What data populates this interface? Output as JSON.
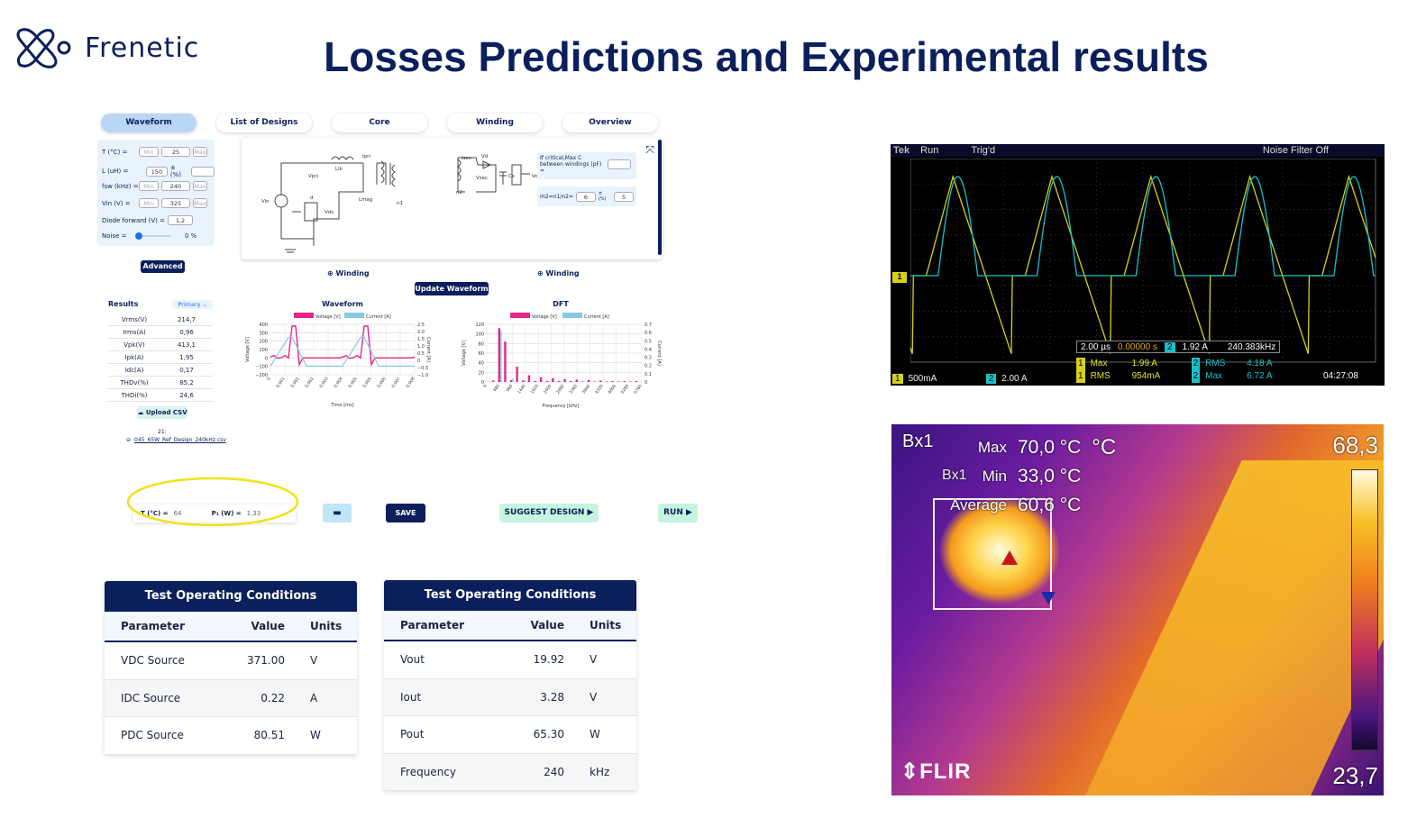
{
  "header": {
    "brand": "Frenetic",
    "title": "Losses Predictions and Experimental results"
  },
  "tabs": [
    "Waveform",
    "List of Designs",
    "Core",
    "Winding",
    "Overview"
  ],
  "inputs": {
    "rows": [
      {
        "label": "T (°C) =",
        "min": "Min",
        "value": "25",
        "max": "Max"
      },
      {
        "label": "L (uH) =",
        "value": "150",
        "unit": "± (%)"
      },
      {
        "label": "fsw (kHz) =",
        "min": "Min",
        "value": "240",
        "max": "Max"
      },
      {
        "label": "Vin (V) =",
        "min": "Min",
        "value": "325",
        "max": "Max"
      },
      {
        "label": "Diode forward (V) =",
        "value": "1,2"
      },
      {
        "label": "Noise =",
        "value": "0 %"
      }
    ],
    "advanced": "Advanced"
  },
  "schematic": {
    "critical_label": "If critical,Max C between windings (pF) =",
    "ratio_label": "m2=n1/n2=",
    "ratio_value": "6",
    "ratio_pm": "± (%)",
    "ratio_tol": "5",
    "labels": [
      "Ipri",
      "Llk",
      "Lmag",
      "Vpri",
      "Vin",
      "Vds",
      "d",
      "n1",
      "Isec",
      "Vd",
      "Vsec",
      "Cs",
      "n2",
      "Vo"
    ]
  },
  "winding_buttons": [
    "Winding",
    "Winding"
  ],
  "update_waveform": "Update Waveform",
  "results": {
    "title": "Results",
    "selector": "Primary",
    "rows": [
      {
        "name": "Vrms(V)",
        "value": "214,7"
      },
      {
        "name": "Irms(A)",
        "value": "0,96"
      },
      {
        "name": "Vpk(V)",
        "value": "413,1"
      },
      {
        "name": "Ipk(A)",
        "value": "1,95"
      },
      {
        "name": "Idc(A)",
        "value": "0,17"
      },
      {
        "name": "THDv(%)",
        "value": "85,2"
      },
      {
        "name": "THDi(%)",
        "value": "24,6"
      }
    ]
  },
  "upload": {
    "label": "Upload CSV",
    "count": "21:",
    "file": "045_65W_Ref_Design_240kHz.csv"
  },
  "chart_data": [
    {
      "type": "line",
      "title": "Waveform",
      "xlabel": "Time [ms]",
      "ylabel": "Voltage [V]",
      "y2label": "Current [A]",
      "legend": [
        "Voltage [V]",
        "Current [A]"
      ],
      "ylim": [
        -200,
        400
      ],
      "y2lim": [
        -1.0,
        2.5
      ],
      "yticks": [
        "400",
        "300",
        "200",
        "100",
        "0",
        "−100",
        "−200"
      ],
      "y2ticks": [
        "2.5",
        "2.0",
        "1.5",
        "1.0",
        "0.5",
        "0",
        "−0.5",
        "−1.0"
      ],
      "xticks": [
        "0",
        "0.001",
        "0.002",
        "0.002",
        "0.003",
        "0.004",
        "0.005",
        "0.005",
        "0.006",
        "0.007",
        "0.008"
      ]
    },
    {
      "type": "bar",
      "title": "DFT",
      "xlabel": "Frequency [kHz]",
      "ylabel": "Voltage [V]",
      "y2label": "Current [A]",
      "legend": [
        "Voltage [V]",
        "Current [A]"
      ],
      "ylim": [
        0,
        120
      ],
      "y2lim": [
        0,
        0.7
      ],
      "yticks": [
        "120",
        "100",
        "80",
        "60",
        "40",
        "20",
        "0"
      ],
      "y2ticks": [
        "0.7",
        "0.6",
        "0.5",
        "0.4",
        "0.3",
        "0.2",
        "0.1",
        "0"
      ],
      "xticks": [
        "0",
        "480",
        "960",
        "1440",
        "1920",
        "2400",
        "2880",
        "3360",
        "3840",
        "4320",
        "4800",
        "5280",
        "5760"
      ],
      "voltage": [
        3,
        112,
        84,
        4,
        32,
        3,
        14,
        2,
        10,
        2,
        8,
        2,
        6,
        2,
        5,
        1,
        4,
        1,
        3,
        1,
        2,
        1,
        2,
        1,
        2
      ],
      "current": [
        0,
        0.62,
        0,
        0.04,
        0,
        0.02,
        0,
        0.01,
        0,
        0.01,
        0,
        0.01,
        0,
        0,
        0,
        0,
        0,
        0,
        0,
        0,
        0,
        0,
        0,
        0,
        0
      ]
    }
  ],
  "bottom_bar": {
    "t_label": "T (°C) =",
    "t_value": "64",
    "p_label": "P₁ (W) =",
    "p_value": "1,33",
    "save": "SAVE",
    "suggest": "SUGGEST DESIGN",
    "run": "RUN"
  },
  "table1": {
    "title": "Test Operating Conditions",
    "headers": [
      "Parameter",
      "Value",
      "Units"
    ],
    "rows": [
      [
        "VDC Source",
        "371.00",
        "V"
      ],
      [
        "IDC Source",
        "0.22",
        "A"
      ],
      [
        "PDC Source",
        "80.51",
        "W"
      ]
    ]
  },
  "table2": {
    "title": "Test Operating Conditions",
    "headers": [
      "Parameter",
      "Value",
      "Units"
    ],
    "rows": [
      [
        "Vout",
        "19.92",
        "V"
      ],
      [
        "Iout",
        "3.28",
        "V"
      ],
      [
        "Pout",
        "65.30",
        "W"
      ],
      [
        "Frequency",
        "240",
        "kHz"
      ]
    ]
  },
  "scope": {
    "brand": "Tek",
    "state": "Run",
    "trig": "Trig'd",
    "filter": "Noise Filter Off",
    "timebase": "2.00 µs",
    "offset": "0.00000 s",
    "trig_level": "1.92 A",
    "freq": "240.383kHz",
    "ch1_scale": "500mA",
    "ch2_scale": "2.00 A",
    "meas": [
      [
        "Max",
        "1.99 A",
        "RMS",
        "4.18 A"
      ],
      [
        "RMS",
        "954mA",
        "Max",
        "6.72 A"
      ]
    ],
    "time": "04:27:08",
    "ch1": "1",
    "ch2": "2",
    "colors": {
      "ch1": "#d6d21a",
      "ch2": "#19c1c9"
    }
  },
  "thermal": {
    "box": "Bx1",
    "max_label": "Max",
    "max_value": "70,0 °C",
    "min_label": "Min",
    "min_value": "33,0 °C",
    "avg_label": "Average",
    "avg_value": "60,6 °C",
    "unit": "°C",
    "scale_max": "68,3",
    "scale_min": "23,7",
    "brand": "FLIR"
  }
}
